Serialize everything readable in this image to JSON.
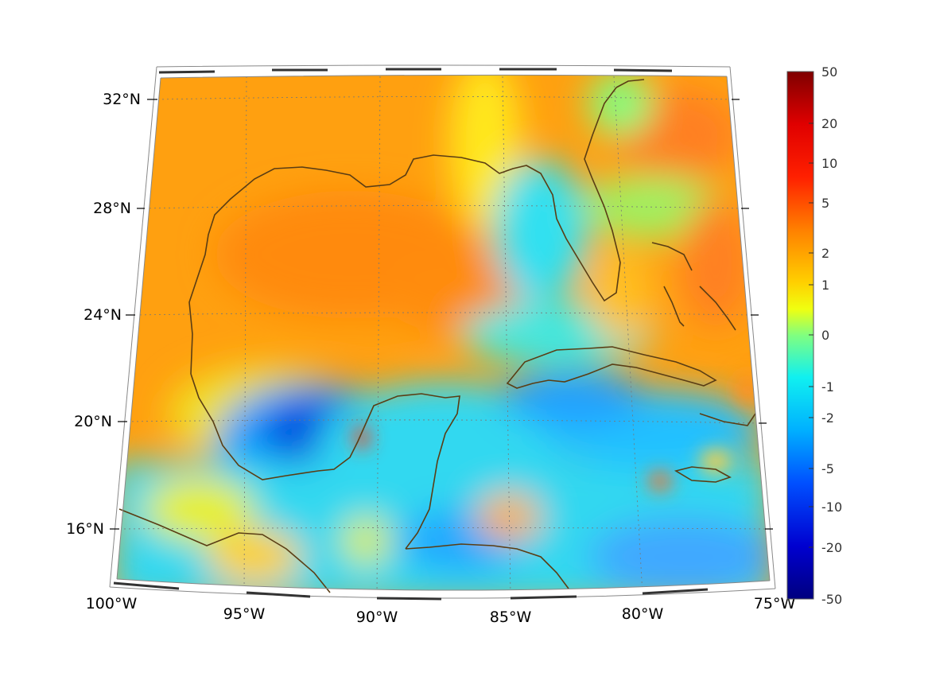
{
  "map": {
    "lon_ticks": [
      "100°W",
      "95°W",
      "90°W",
      "85°W",
      "80°W",
      "75°W"
    ],
    "lat_ticks": [
      "32°N",
      "28°N",
      "24°N",
      "20°N",
      "16°N"
    ],
    "extent": {
      "lon_min": -100,
      "lon_max": -75,
      "lat_min": 14,
      "lat_max": 33
    },
    "grid": true,
    "projection": "conic"
  },
  "colorbar": {
    "tick_labels": [
      "50",
      "20",
      "10",
      "5",
      "2",
      "1",
      "0",
      "-1",
      "-2",
      "-5",
      "-10",
      "-20",
      "-50"
    ],
    "colormap": "jet",
    "colors": {
      "max": "#7f0000",
      "high": "#ff0000",
      "mid_high": "#ff8c00",
      "mid": "#ffff00",
      "zero": "#7fff7f",
      "mid_low": "#00ffff",
      "low": "#0060ff",
      "min": "#00007f"
    }
  },
  "style": {
    "coastline_color": "#5a3d14",
    "frame_color": "#888888"
  }
}
